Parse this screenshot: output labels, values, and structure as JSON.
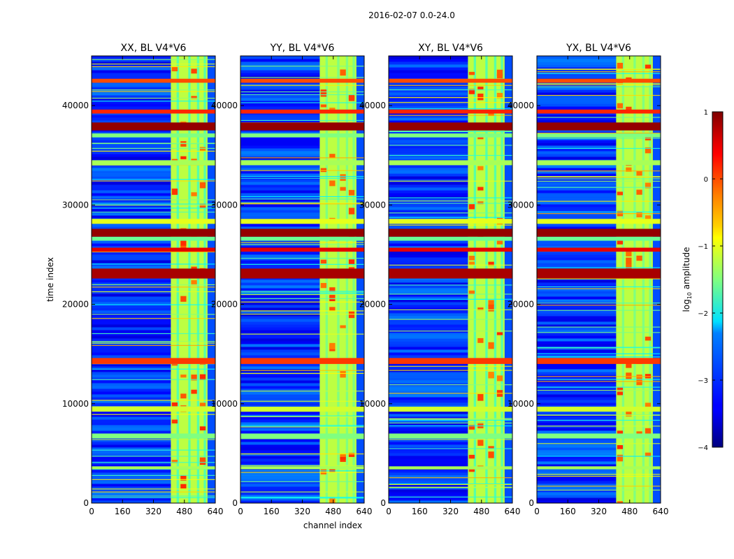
{
  "chart_data": {
    "type": "heatmap",
    "suptitle": "2016-02-07 0.0-24.0",
    "xlabel": "channel index",
    "ylabel": "time index",
    "xlim": [
      0,
      640
    ],
    "ylim": [
      0,
      45000
    ],
    "xticks": [
      0,
      160,
      320,
      480,
      640
    ],
    "yticks": [
      0,
      10000,
      20000,
      30000,
      40000
    ],
    "panels": [
      {
        "title": "XX, BL V4*V6"
      },
      {
        "title": "YY, BL V4*V6"
      },
      {
        "title": "XY, BL V4*V6"
      },
      {
        "title": "YX, BL V4*V6"
      }
    ],
    "colorbar": {
      "label": "log10 amplitude",
      "label_base": "log",
      "label_sub": "10",
      "label_rest": " amplitude",
      "min": -4,
      "max": 1,
      "ticks": [
        1,
        0,
        -1,
        -2,
        -3,
        -4
      ],
      "tick_labels": [
        "1",
        "0",
        "−1",
        "−2",
        "−3",
        "−4"
      ],
      "colormap": "jet"
    },
    "band": {
      "low_channel_start": 0,
      "high_channel_start": 410,
      "high_channel_end": 600,
      "low_level": -3.3,
      "high_level": -1.2
    },
    "rfi_rows": [
      {
        "start": 37500,
        "end": 38300,
        "value": 0.9
      },
      {
        "start": 26800,
        "end": 27600,
        "value": 0.9
      },
      {
        "start": 22600,
        "end": 23600,
        "value": 0.8
      },
      {
        "start": 25300,
        "end": 25700,
        "value": 0.5
      },
      {
        "start": 28100,
        "end": 28600,
        "value": -1.0
      },
      {
        "start": 26400,
        "end": 26800,
        "value": -1.6
      },
      {
        "start": 34000,
        "end": 34500,
        "value": -1.3
      },
      {
        "start": 36800,
        "end": 37200,
        "value": -1.5
      },
      {
        "start": 39200,
        "end": 39600,
        "value": 0.2
      },
      {
        "start": 42300,
        "end": 42700,
        "value": 0.0
      },
      {
        "start": 9200,
        "end": 9700,
        "value": -1.1
      },
      {
        "start": 6500,
        "end": 7000,
        "value": -1.5
      },
      {
        "start": 14000,
        "end": 14600,
        "value": 0.1
      },
      {
        "start": 3400,
        "end": 3700,
        "value": -1.3
      }
    ]
  }
}
